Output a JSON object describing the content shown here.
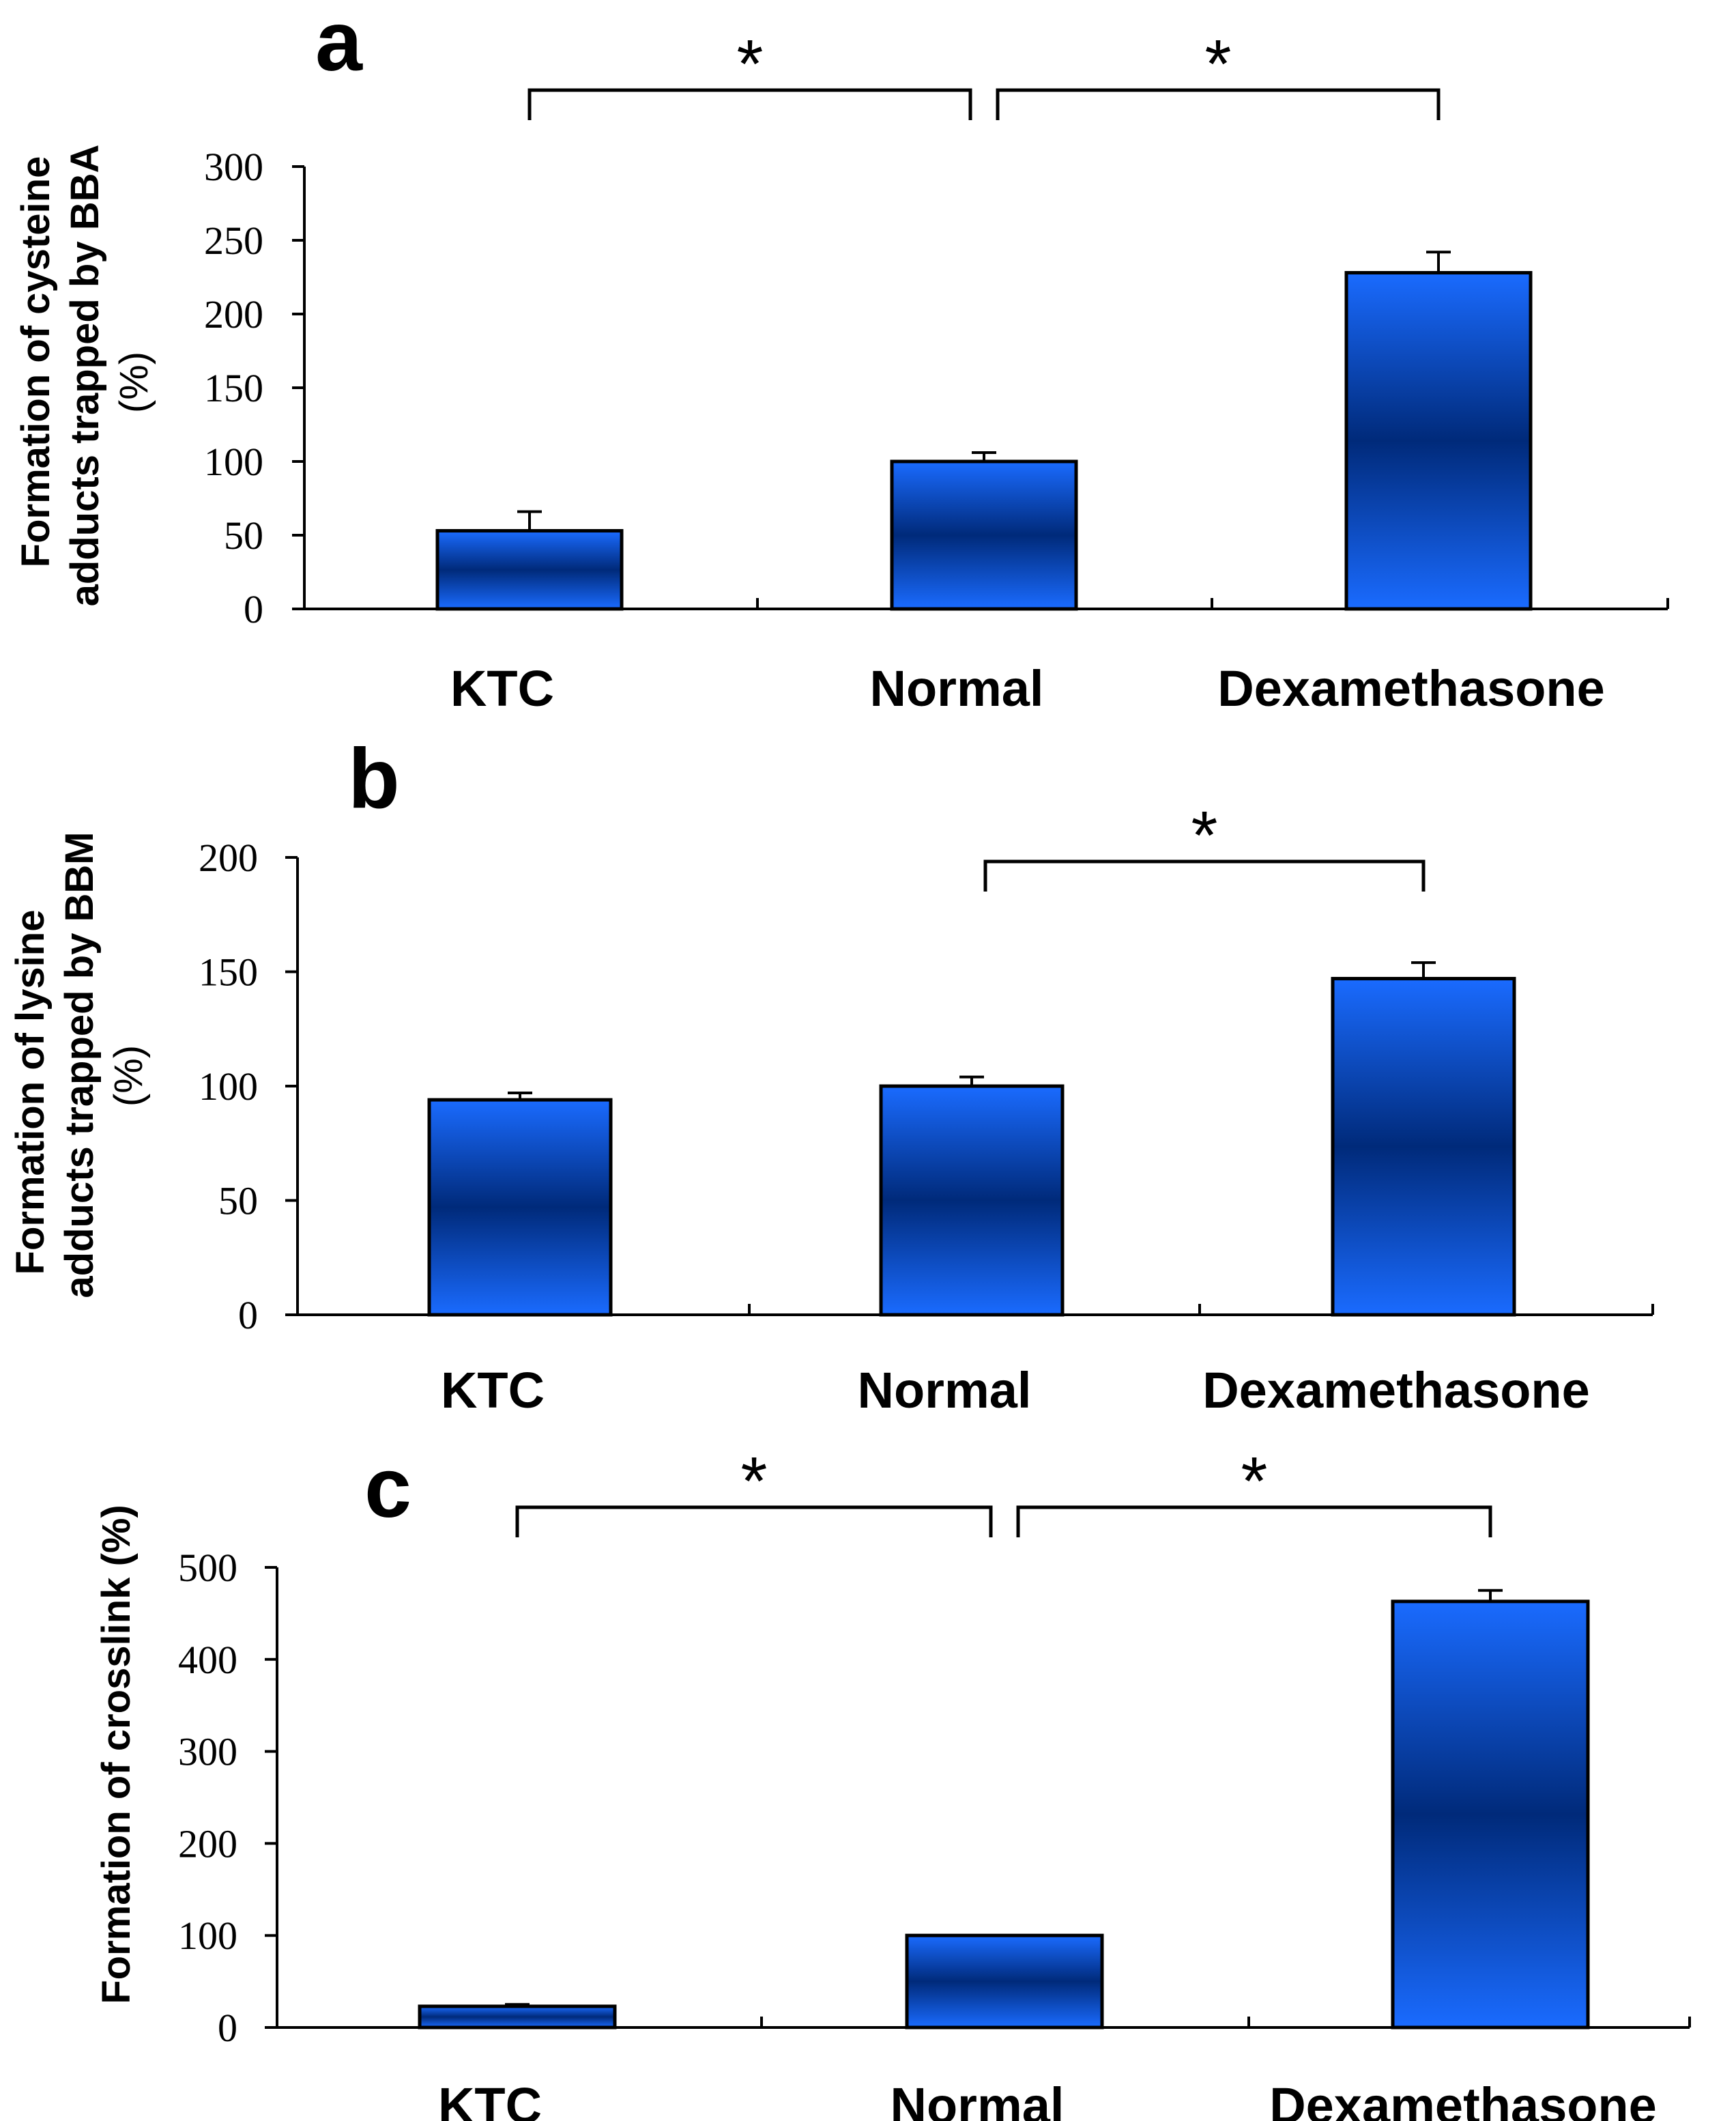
{
  "chart_data": [
    {
      "type": "bar",
      "panel": "a",
      "ylabel": [
        "Formation of cysteine",
        "adducts trapped by BBA",
        "(%)"
      ],
      "categories": [
        "KTC",
        "Normal",
        "Dexamethasone"
      ],
      "values": [
        53,
        100,
        228
      ],
      "errors": [
        13,
        6,
        14
      ],
      "ylim": [
        0,
        300
      ],
      "yticks": [
        "0",
        "50",
        "100",
        "150",
        "200",
        "250",
        "300"
      ],
      "significance": [
        {
          "from": 0,
          "to": 1,
          "label": "*"
        },
        {
          "from": 1,
          "to": 2,
          "label": "*"
        }
      ]
    },
    {
      "type": "bar",
      "panel": "b",
      "ylabel": [
        "Formation of lysine",
        "adducts trapped by BBM",
        "(%)"
      ],
      "categories": [
        "KTC",
        "Normal",
        "Dexamethasone"
      ],
      "values": [
        94,
        100,
        147
      ],
      "errors": [
        3,
        4,
        7
      ],
      "ylim": [
        0,
        200
      ],
      "yticks": [
        "0",
        "50",
        "100",
        "150",
        "200"
      ],
      "significance": [
        {
          "from": 1,
          "to": 2,
          "label": "*"
        }
      ]
    },
    {
      "type": "bar",
      "panel": "c",
      "ylabel": [
        "Formation of crosslink (%)"
      ],
      "categories": [
        "KTC",
        "Normal",
        "Dexamethasone"
      ],
      "values": [
        23,
        100,
        463
      ],
      "errors": [
        2,
        0,
        12
      ],
      "ylim": [
        0,
        500
      ],
      "yticks": [
        "0",
        "100",
        "200",
        "300",
        "400",
        "500"
      ],
      "significance": [
        {
          "from": 0,
          "to": 1,
          "label": "*"
        },
        {
          "from": 1,
          "to": 2,
          "label": "*"
        }
      ]
    }
  ],
  "colors": {
    "bar_edge": "#1a6bff",
    "bar_mid": "#002a7a",
    "axis": "#000000"
  }
}
